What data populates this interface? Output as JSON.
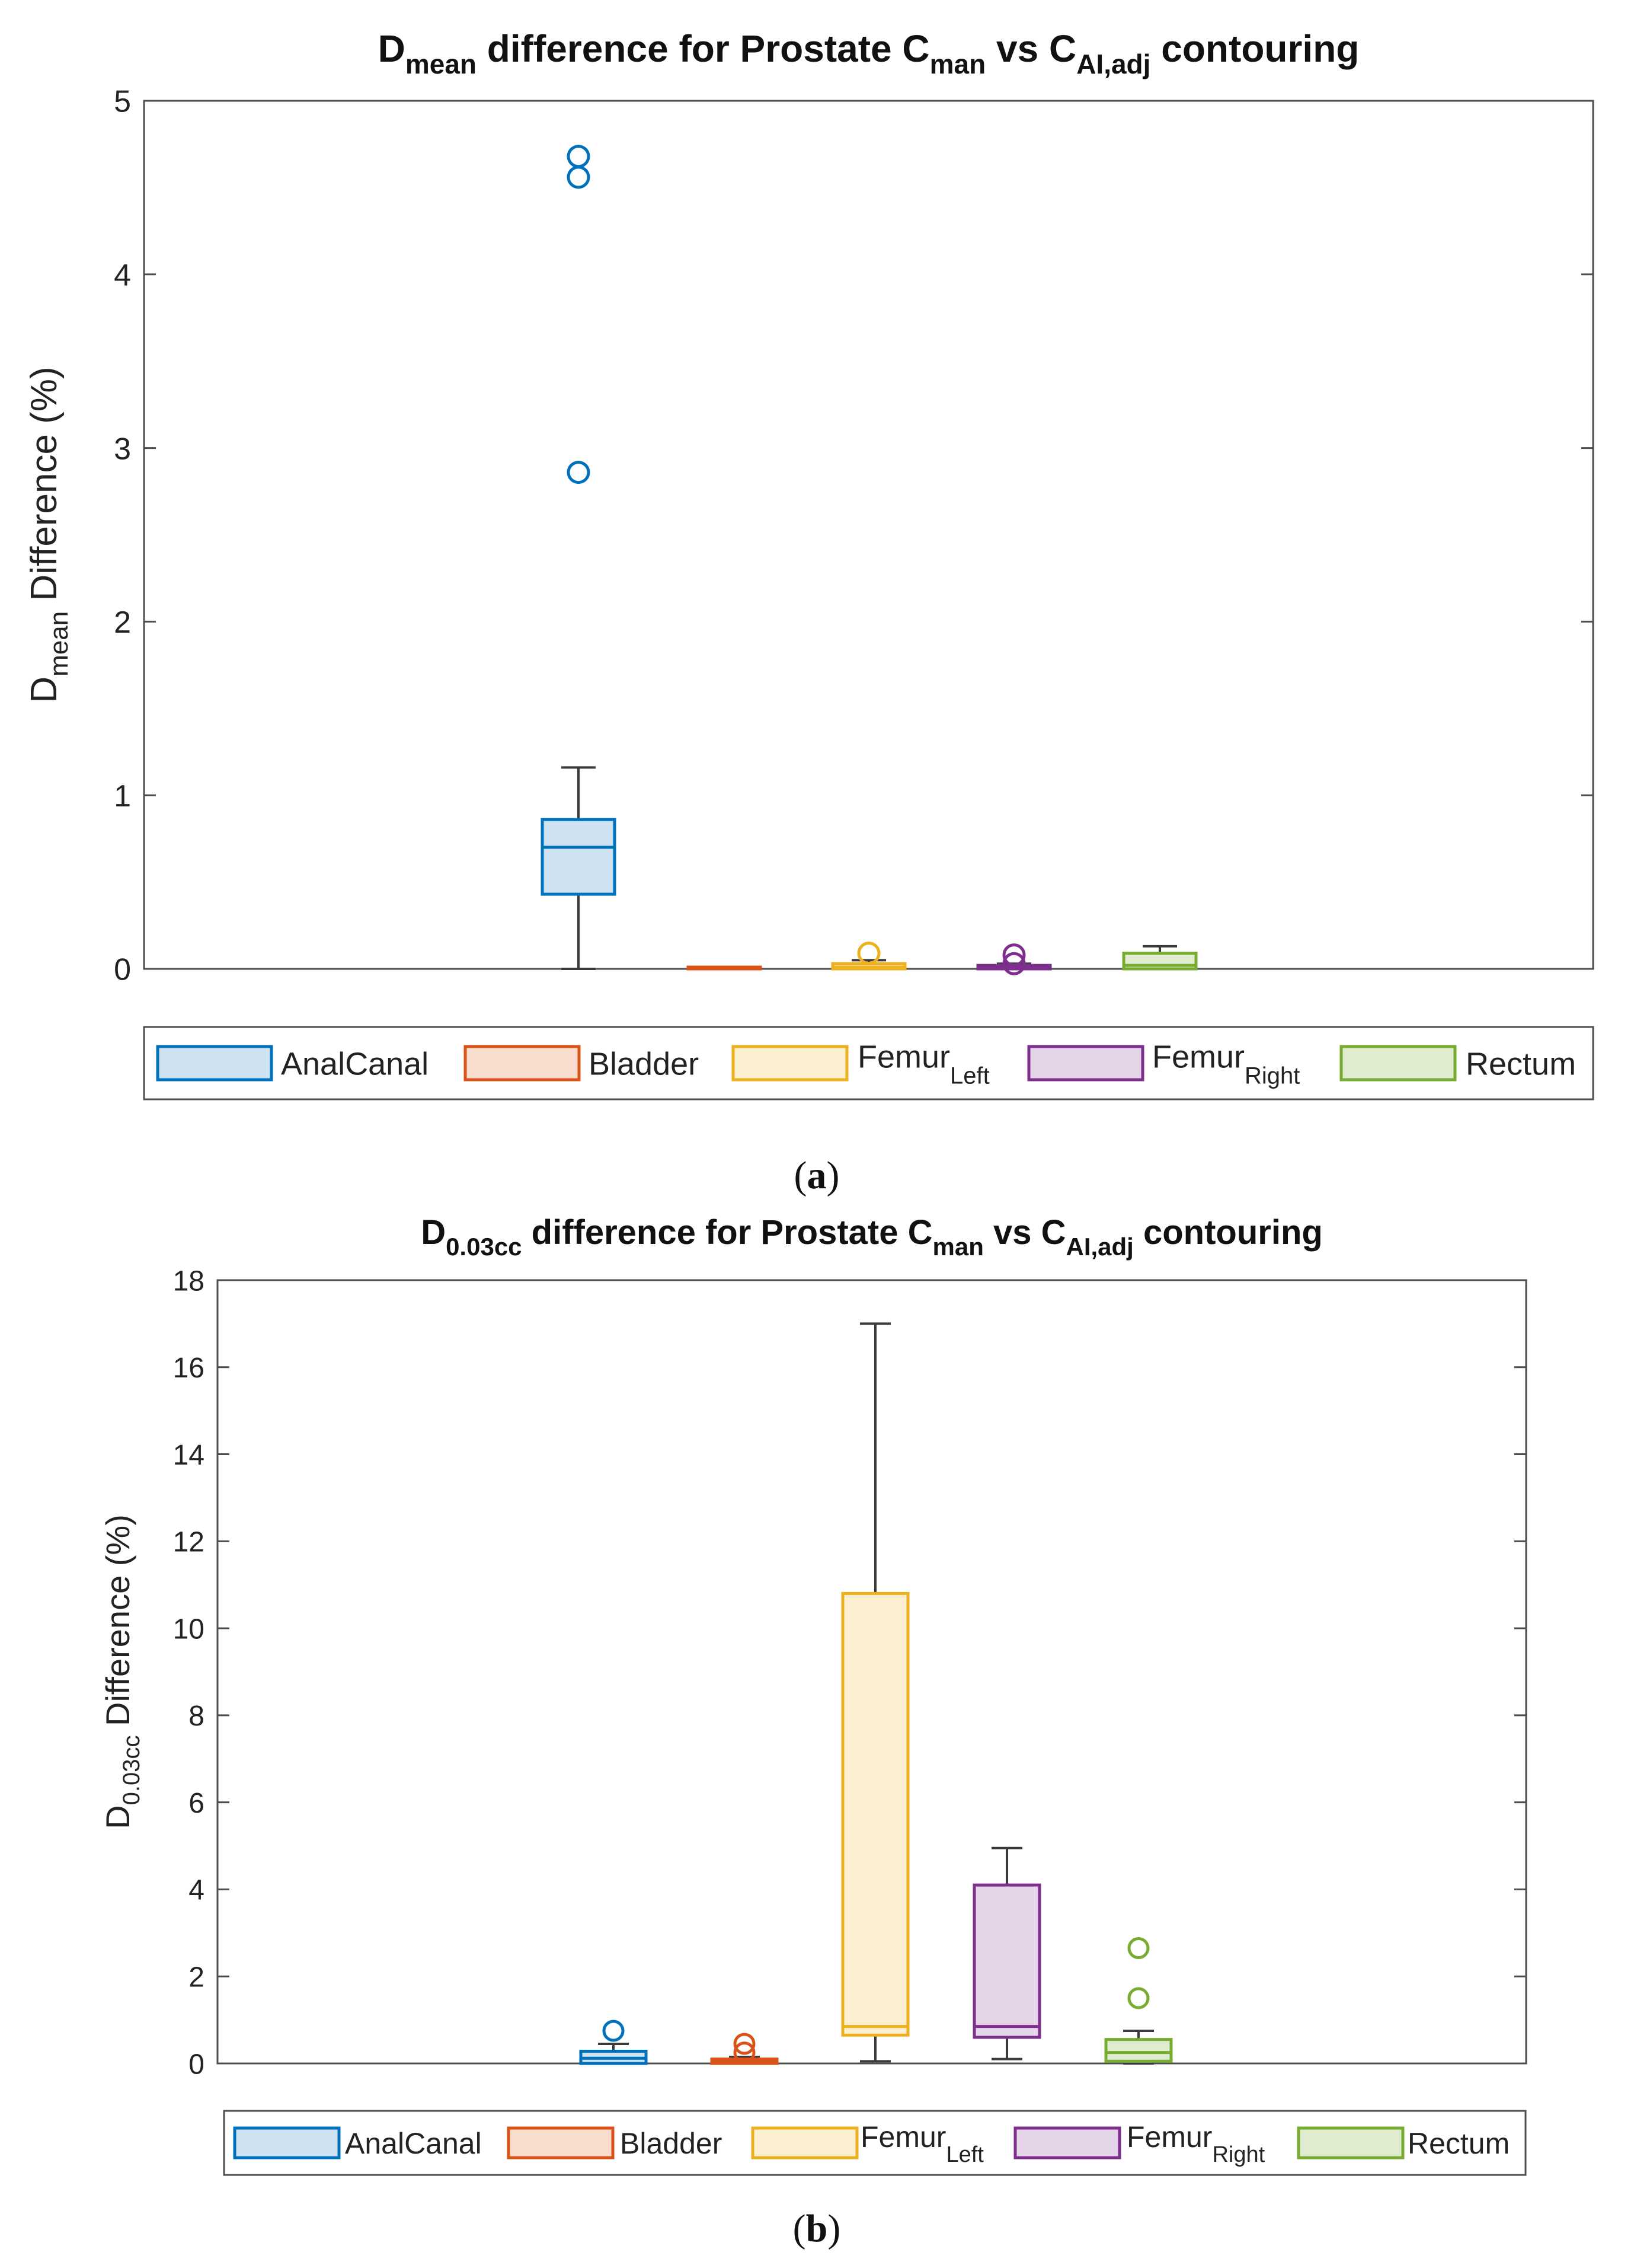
{
  "chart_data": [
    {
      "id": "a",
      "type": "box",
      "caption": "(a)",
      "caption_letter": "a",
      "title": {
        "p1": "D",
        "p1_sub": "mean",
        "p2": " difference for Prostate C",
        "p2_sub": "man",
        "p3": " vs C",
        "p3_sub": "AI,adj",
        "p4": " contouring"
      },
      "ylabel": {
        "base": "D",
        "sub": "mean",
        "rest": " Difference (%)"
      },
      "xlabel": "",
      "ylim": [
        0,
        5
      ],
      "yticks": [
        0,
        1,
        2,
        3,
        4,
        5
      ],
      "grid": false,
      "legend_position": "bottom-outside",
      "series": [
        {
          "name": "AnalCanal",
          "name_sub": "",
          "color": "#0072BD",
          "fill": "#cfe2f1",
          "whisker_low": 0.0,
          "q1": 0.43,
          "median": 0.7,
          "q3": 0.86,
          "whisker_high": 1.16,
          "outliers": [
            4.68,
            4.56,
            2.86
          ]
        },
        {
          "name": "Bladder",
          "name_sub": "",
          "color": "#D95319",
          "fill": "#f8dccd",
          "whisker_low": 0.0,
          "q1": 0.0,
          "median": 0.0,
          "q3": 0.005,
          "whisker_high": 0.005,
          "outliers": []
        },
        {
          "name": "Femur",
          "name_sub": "Left",
          "color": "#EDB120",
          "fill": "#fcefd0",
          "whisker_low": 0.0,
          "q1": 0.0,
          "median": 0.01,
          "q3": 0.03,
          "whisker_high": 0.05,
          "outliers": [
            0.09
          ]
        },
        {
          "name": "Femur",
          "name_sub": "Right",
          "color": "#7E2F8E",
          "fill": "#e5d5e9",
          "whisker_low": 0.0,
          "q1": 0.0,
          "median": 0.01,
          "q3": 0.02,
          "whisker_high": 0.03,
          "outliers": [
            0.08,
            0.03
          ]
        },
        {
          "name": "Rectum",
          "name_sub": "",
          "color": "#77AC30",
          "fill": "#dfecd0",
          "whisker_low": 0.0,
          "q1": 0.0,
          "median": 0.02,
          "q3": 0.09,
          "whisker_high": 0.13,
          "outliers": []
        }
      ]
    },
    {
      "id": "b",
      "type": "box",
      "caption": "(b)",
      "caption_letter": "b",
      "title": {
        "p1": "D",
        "p1_sub": "0.03cc",
        "p2": " difference for Prostate C",
        "p2_sub": "man",
        "p3": " vs C",
        "p3_sub": "AI,adj",
        "p4": " contouring"
      },
      "ylabel": {
        "base": "D",
        "sub": "0.03cc",
        "rest": " Difference (%)"
      },
      "xlabel": "",
      "ylim": [
        0,
        18
      ],
      "yticks": [
        0,
        2,
        4,
        6,
        8,
        10,
        12,
        14,
        16,
        18
      ],
      "grid": false,
      "legend_position": "bottom-outside",
      "series": [
        {
          "name": "AnalCanal",
          "name_sub": "",
          "color": "#0072BD",
          "fill": "#cfe2f1",
          "whisker_low": 0.0,
          "q1": 0.0,
          "median": 0.12,
          "q3": 0.28,
          "whisker_high": 0.45,
          "outliers": [
            0.75
          ]
        },
        {
          "name": "Bladder",
          "name_sub": "",
          "color": "#D95319",
          "fill": "#f8dccd",
          "whisker_low": 0.0,
          "q1": 0.0,
          "median": 0.05,
          "q3": 0.1,
          "whisker_high": 0.15,
          "outliers": [
            0.45,
            0.25
          ]
        },
        {
          "name": "Femur",
          "name_sub": "Left",
          "color": "#EDB120",
          "fill": "#fcefd0",
          "whisker_low": 0.05,
          "q1": 0.65,
          "median": 0.85,
          "q3": 10.8,
          "whisker_high": 17.0,
          "outliers": []
        },
        {
          "name": "Femur",
          "name_sub": "Right",
          "color": "#7E2F8E",
          "fill": "#e5d5e9",
          "whisker_low": 0.1,
          "q1": 0.6,
          "median": 0.85,
          "q3": 4.1,
          "whisker_high": 4.95,
          "outliers": []
        },
        {
          "name": "Rectum",
          "name_sub": "",
          "color": "#77AC30",
          "fill": "#dfecd0",
          "whisker_low": 0.0,
          "q1": 0.05,
          "median": 0.25,
          "q3": 0.55,
          "whisker_high": 0.75,
          "outliers": [
            2.65,
            1.5
          ]
        }
      ]
    }
  ]
}
